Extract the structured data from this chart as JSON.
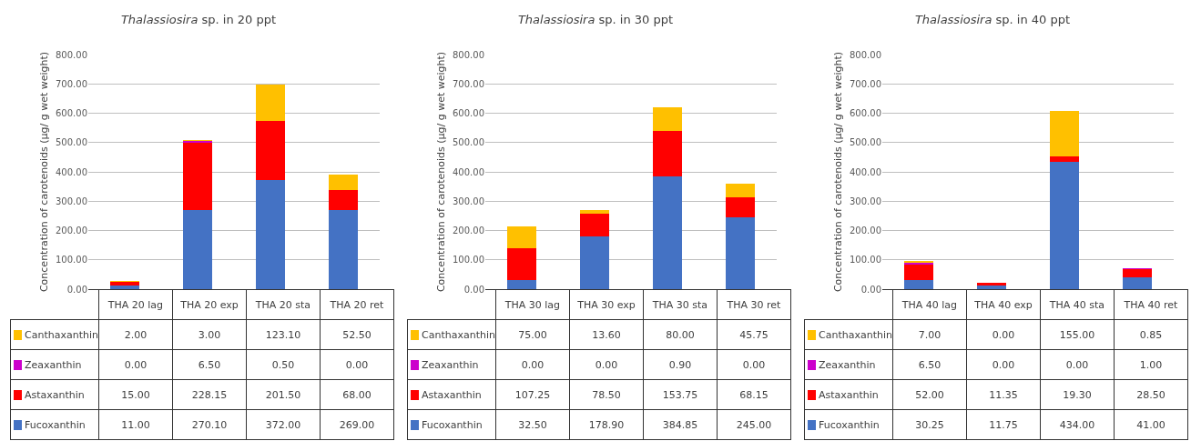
{
  "chart_data": [
    {
      "type": "bar",
      "title": "Thalassiosira sp. in 20 ppt",
      "ylabel": "Concentration of carotenoids (µg/ g wet weight)",
      "categories": [
        "THA 20 lag",
        "THA 20 exp",
        "THA 20 sta",
        "THA 20 ret"
      ],
      "stacked": true,
      "ylim": [
        0,
        800
      ],
      "yticks": [
        {
          "value": 0,
          "label": "0.00"
        },
        {
          "value": 100,
          "label": "100.00"
        },
        {
          "value": 200,
          "label": "200.00"
        },
        {
          "value": 300,
          "label": "300.00"
        },
        {
          "value": 400,
          "label": "400.00"
        },
        {
          "value": 500,
          "label": "500.00"
        },
        {
          "value": 600,
          "label": "600.00"
        },
        {
          "value": 700,
          "label": "700.00"
        },
        {
          "value": 800,
          "label": "800.00"
        }
      ],
      "grid": "y",
      "legend": "bottom",
      "series": [
        {
          "name": "Fucoxanthin",
          "color": "#4472c4",
          "values": [
            11,
            270.1,
            372,
            269
          ],
          "value_labels": [
            "11.00",
            "270.10",
            "372.00",
            "269.00"
          ]
        },
        {
          "name": "Astaxanthin",
          "color": "#ff0000",
          "values": [
            15,
            228.15,
            201.5,
            68
          ],
          "value_labels": [
            "15.00",
            "228.15",
            "201.50",
            "68.00"
          ]
        },
        {
          "name": "Zeaxanthin",
          "color": "#cc00cc",
          "values": [
            0,
            6.5,
            0.5,
            0
          ],
          "value_labels": [
            "0.00",
            "6.50",
            "0.50",
            "0.00"
          ]
        },
        {
          "name": "Canthaxanthin",
          "color": "#ffc000",
          "values": [
            2,
            3,
            123.1,
            52.5
          ],
          "value_labels": [
            "2.00",
            "3.00",
            "123.10",
            "52.50"
          ]
        }
      ]
    },
    {
      "type": "bar",
      "title": "Thalassiosira sp. in 30 ppt",
      "ylabel": "Concentration of carotenoids (µg/ g wet weight)",
      "categories": [
        "THA 30 lag",
        "THA 30 exp",
        "THA 30 sta",
        "THA 30 ret"
      ],
      "stacked": true,
      "ylim": [
        0,
        800
      ],
      "yticks": [
        {
          "value": 0,
          "label": "0.00"
        },
        {
          "value": 100,
          "label": "100.00"
        },
        {
          "value": 200,
          "label": "200.00"
        },
        {
          "value": 300,
          "label": "300.00"
        },
        {
          "value": 400,
          "label": "400.00"
        },
        {
          "value": 500,
          "label": "500.00"
        },
        {
          "value": 600,
          "label": "600.00"
        },
        {
          "value": 700,
          "label": "700.00"
        },
        {
          "value": 800,
          "label": "800.00"
        }
      ],
      "grid": "y",
      "legend": "bottom",
      "series": [
        {
          "name": "Fucoxanthin",
          "color": "#4472c4",
          "values": [
            32.5,
            178.9,
            384.85,
            245
          ],
          "value_labels": [
            "32.50",
            "178.90",
            "384.85",
            "245.00"
          ]
        },
        {
          "name": "Astaxanthin",
          "color": "#ff0000",
          "values": [
            107.25,
            78.5,
            153.75,
            68.15
          ],
          "value_labels": [
            "107.25",
            "78.50",
            "153.75",
            "68.15"
          ]
        },
        {
          "name": "Zeaxanthin",
          "color": "#cc00cc",
          "values": [
            0,
            0,
            0.9,
            0
          ],
          "value_labels": [
            "0.00",
            "0.00",
            "0.90",
            "0.00"
          ]
        },
        {
          "name": "Canthaxanthin",
          "color": "#ffc000",
          "values": [
            75,
            13.6,
            80,
            45.75
          ],
          "value_labels": [
            "75.00",
            "13.60",
            "80.00",
            "45.75"
          ]
        }
      ]
    },
    {
      "type": "bar",
      "title": "Thalassiosira sp. in 40 ppt",
      "ylabel": "Concentration of carotenoids (µg/ g wet weight)",
      "categories": [
        "THA 40 lag",
        "THA 40 exp",
        "THA 40 sta",
        "THA 40 ret"
      ],
      "stacked": true,
      "ylim": [
        0,
        800
      ],
      "yticks": [
        {
          "value": 0,
          "label": "0.00"
        },
        {
          "value": 100,
          "label": "100.00"
        },
        {
          "value": 200,
          "label": "200.00"
        },
        {
          "value": 300,
          "label": "300.00"
        },
        {
          "value": 400,
          "label": "400.00"
        },
        {
          "value": 500,
          "label": "500.00"
        },
        {
          "value": 600,
          "label": "600.00"
        },
        {
          "value": 700,
          "label": "700.00"
        },
        {
          "value": 800,
          "label": "800.00"
        }
      ],
      "grid": "y",
      "legend": "bottom",
      "series": [
        {
          "name": "Fucoxanthin",
          "color": "#4472c4",
          "values": [
            30.25,
            11.75,
            434,
            41
          ],
          "value_labels": [
            "30.25",
            "11.75",
            "434.00",
            "41.00"
          ]
        },
        {
          "name": "Astaxanthin",
          "color": "#ff0000",
          "values": [
            52,
            11.35,
            19.3,
            28.5
          ],
          "value_labels": [
            "52.00",
            "11.35",
            "19.30",
            "28.50"
          ]
        },
        {
          "name": "Zeaxanthin",
          "color": "#cc00cc",
          "values": [
            6.5,
            0,
            0,
            1
          ],
          "value_labels": [
            "6.50",
            "0.00",
            "0.00",
            "1.00"
          ]
        },
        {
          "name": "Canthaxanthin",
          "color": "#ffc000",
          "values": [
            7,
            0,
            155,
            0.85
          ],
          "value_labels": [
            "7.00",
            "0.00",
            "155.00",
            "0.85"
          ]
        }
      ]
    }
  ]
}
